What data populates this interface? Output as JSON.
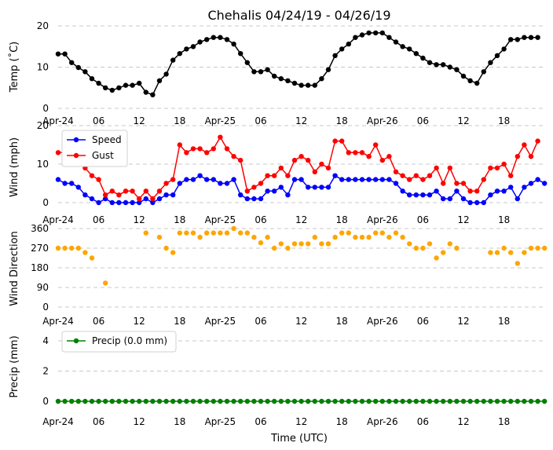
{
  "title": "Chehalis 04/24/19 - 04/26/19",
  "xlabel": "Time (UTC)",
  "x_ticks": [
    "Apr-24",
    "06",
    "12",
    "18",
    "Apr-25",
    "06",
    "12",
    "18",
    "Apr-26",
    "06",
    "12",
    "18"
  ],
  "chart_data": [
    {
      "type": "line",
      "ylabel": "Temp (˚C)",
      "ylim": [
        0,
        20
      ],
      "yticks": [
        "0",
        "10",
        "20"
      ],
      "x_hours_from_apr24_00": {
        "start": 0,
        "step": 1
      },
      "series": [
        {
          "color": "#000000",
          "values": [
            13.2,
            13.2,
            11.1,
            9.9,
            8.9,
            7.2,
            6.1,
            5,
            4.4,
            5,
            5.6,
            5.6,
            6.1,
            3.9,
            3.3,
            6.7,
            8.3,
            11.7,
            13.3,
            14.4,
            15,
            16.1,
            16.7,
            17.2,
            17.2,
            16.7,
            15.6,
            13.3,
            11.1,
            8.9,
            8.9,
            9.4,
            7.8,
            7.2,
            6.7,
            6.1,
            5.6,
            5.6,
            5.6,
            7.2,
            9.4,
            12.8,
            14.4,
            15.6,
            17.2,
            17.8,
            18.3,
            18.3,
            18.3,
            17.2,
            16.1,
            15,
            14.4,
            13.3,
            12.2,
            11.1,
            10.6,
            10.6,
            10,
            9.4,
            7.8,
            6.7,
            6.1,
            8.9,
            11.1,
            12.8,
            14.4,
            16.7,
            16.7,
            17.2,
            17.2,
            17.2
          ]
        }
      ]
    },
    {
      "type": "line",
      "ylabel": "Wind (mph)",
      "ylim": [
        0,
        20
      ],
      "yticks": [
        "0",
        "10",
        "20"
      ],
      "legend": "top-left",
      "series": [
        {
          "name": "Speed",
          "color": "#0000ff",
          "values": [
            6,
            5,
            5,
            4,
            2,
            1,
            0,
            1,
            0,
            0,
            0,
            0,
            0,
            1,
            0,
            1,
            2,
            2,
            5,
            6,
            6,
            7,
            6,
            6,
            5,
            5,
            6,
            2,
            1,
            1,
            1,
            3,
            3,
            4,
            2,
            6,
            6,
            4,
            4,
            4,
            4,
            7,
            6,
            6,
            6,
            6,
            6,
            6,
            6,
            6,
            5,
            3,
            2,
            2,
            2,
            2,
            3,
            1,
            1,
            3,
            1,
            0,
            0,
            0,
            2,
            3,
            3,
            4,
            1,
            4,
            5,
            6,
            5
          ]
        },
        {
          "name": "Gust",
          "color": "#ff0000",
          "values": [
            13,
            13,
            13,
            13,
            9,
            7,
            6,
            2,
            3,
            2,
            3,
            3,
            1,
            3,
            1,
            3,
            5,
            6,
            15,
            13,
            14,
            14,
            13,
            14,
            17,
            14,
            12,
            11,
            3,
            4,
            5,
            7,
            7,
            9,
            7,
            11,
            12,
            11,
            8,
            10,
            9,
            16,
            16,
            13,
            13,
            13,
            12,
            15,
            11,
            12,
            8,
            7,
            6,
            7,
            6,
            7,
            9,
            5,
            9,
            5,
            5,
            3,
            3,
            6,
            9,
            9,
            10,
            7,
            12,
            15,
            12,
            16
          ]
        }
      ]
    },
    {
      "type": "scatter",
      "ylabel": "Wind Direction",
      "ylim": [
        0,
        360
      ],
      "yticks": [
        "0",
        "90",
        "180",
        "270",
        "360"
      ],
      "series": [
        {
          "color": "#ffa500",
          "points": [
            [
              0,
              270
            ],
            [
              1,
              270
            ],
            [
              2,
              270
            ],
            [
              3,
              270
            ],
            [
              4,
              250
            ],
            [
              5,
              225
            ],
            [
              7,
              110
            ],
            [
              13,
              340
            ],
            [
              15,
              320
            ],
            [
              16,
              270
            ],
            [
              17,
              250
            ],
            [
              18,
              340
            ],
            [
              19,
              340
            ],
            [
              20,
              340
            ],
            [
              21,
              320
            ],
            [
              22,
              340
            ],
            [
              23,
              340
            ],
            [
              24,
              340
            ],
            [
              25,
              340
            ],
            [
              26,
              360
            ],
            [
              27,
              340
            ],
            [
              28,
              340
            ],
            [
              29,
              320
            ],
            [
              30,
              295
            ],
            [
              31,
              320
            ],
            [
              32,
              270
            ],
            [
              33,
              290
            ],
            [
              34,
              270
            ],
            [
              35,
              290
            ],
            [
              36,
              290
            ],
            [
              37,
              290
            ],
            [
              38,
              320
            ],
            [
              39,
              290
            ],
            [
              40,
              290
            ],
            [
              41,
              320
            ],
            [
              42,
              340
            ],
            [
              43,
              340
            ],
            [
              44,
              320
            ],
            [
              45,
              320
            ],
            [
              46,
              320
            ],
            [
              47,
              340
            ],
            [
              48,
              340
            ],
            [
              49,
              320
            ],
            [
              50,
              340
            ],
            [
              51,
              320
            ],
            [
              52,
              290
            ],
            [
              53,
              270
            ],
            [
              54,
              270
            ],
            [
              55,
              290
            ],
            [
              56,
              225
            ],
            [
              57,
              250
            ],
            [
              58,
              290
            ],
            [
              59,
              270
            ],
            [
              64,
              250
            ],
            [
              65,
              250
            ],
            [
              66,
              270
            ],
            [
              67,
              250
            ],
            [
              68,
              200
            ],
            [
              69,
              250
            ],
            [
              70,
              270
            ],
            [
              71,
              270
            ],
            [
              72,
              270
            ]
          ]
        }
      ]
    },
    {
      "type": "line",
      "ylabel": "Precip (mm)",
      "ylim": [
        -0.4,
        5
      ],
      "yticks": [
        "0",
        "2",
        "4"
      ],
      "legend": "top-left",
      "series": [
        {
          "name": "Precip (0.0 mm)",
          "color": "#008000",
          "constant": 0,
          "count": 73
        }
      ]
    }
  ]
}
